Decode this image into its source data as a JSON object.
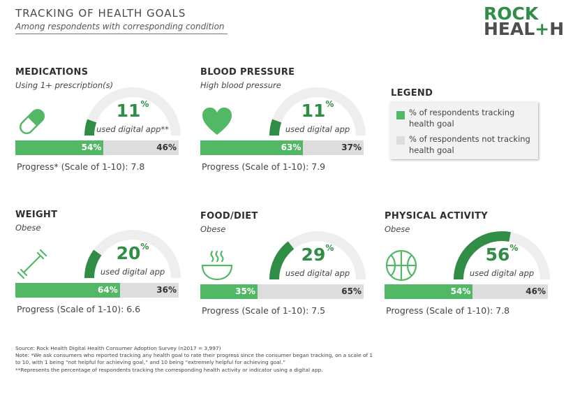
{
  "header": {
    "title": "TRACKING OF HEALTH GOALS",
    "subtitle": "Among respondents with corresponding condition",
    "logo_line1": "ROCK",
    "logo_line2_a": "HEAL",
    "logo_line2_plus": "+",
    "logo_line2_b": "H"
  },
  "legend": {
    "title": "LEGEND",
    "tracking_label": "% of respondents tracking health goal",
    "not_tracking_label": "% of respondents not tracking health goal",
    "tracking_color": "#52b865",
    "not_tracking_color": "#dddddd"
  },
  "chart_data": {
    "type": "gauge+stacked-bar",
    "panels": [
      {
        "id": "medications",
        "icon": "pill-icon",
        "title": "MEDICATIONS",
        "condition": "Using 1+ prescription(s)",
        "digital_app_pct": 11,
        "pct_label": "11",
        "pct_sign": "%",
        "app_label": "used digital app**",
        "tracking_pct": 54,
        "not_tracking_pct": 46,
        "tracking_label": "54%",
        "not_tracking_label": "46%",
        "progress_label": "Progress* (Scale of 1-10): 7.8",
        "progress": 7.8
      },
      {
        "id": "blood-pressure",
        "icon": "heart-icon",
        "title": "BLOOD PRESSURE",
        "condition": "High blood pressure",
        "digital_app_pct": 11,
        "pct_label": "11",
        "pct_sign": "%",
        "app_label": "used digital app",
        "tracking_pct": 63,
        "not_tracking_pct": 37,
        "tracking_label": "63%",
        "not_tracking_label": "37%",
        "progress_label": "Progress (Scale of 1-10): 7.9",
        "progress": 7.9
      },
      {
        "id": "weight",
        "icon": "dumbbell-icon",
        "title": "WEIGHT",
        "condition": "Obese",
        "digital_app_pct": 20,
        "pct_label": "20",
        "pct_sign": "%",
        "app_label": "used digital app",
        "tracking_pct": 64,
        "not_tracking_pct": 36,
        "tracking_label": "64%",
        "not_tracking_label": "36%",
        "progress_label": "Progress (Scale of 1-10): 6.6",
        "progress": 6.6
      },
      {
        "id": "food-diet",
        "icon": "soup-bowl-icon",
        "title": "FOOD/DIET",
        "condition": "Obese",
        "digital_app_pct": 29,
        "pct_label": "29",
        "pct_sign": "%",
        "app_label": "used digital app",
        "tracking_pct": 35,
        "not_tracking_pct": 65,
        "tracking_label": "35%",
        "not_tracking_label": "65%",
        "progress_label": "Progress (Scale of 1-10): 7.5",
        "progress": 7.5
      },
      {
        "id": "physical-activity",
        "icon": "basketball-icon",
        "title": "PHYSICAL ACTIVITY",
        "condition": "Obese",
        "digital_app_pct": 56,
        "pct_label": "56",
        "pct_sign": "%",
        "app_label": "used digital app",
        "tracking_pct": 54,
        "not_tracking_pct": 46,
        "tracking_label": "54%",
        "not_tracking_label": "46%",
        "progress_label": "Progress (Scale of 1-10): 7.8",
        "progress": 7.8
      }
    ],
    "colors": {
      "gauge_fill": "#2f8d46",
      "gauge_track": "#eeeeee",
      "bar_fill": "#52b865",
      "bar_rest": "#dddddd"
    }
  },
  "footnotes": {
    "source": "Source: Rock Health Digital Health Consumer Adoption Survey (n2017 = 3,997)",
    "note": "Note: *We ask consumers who reported tracking any health goal to rate their progress since the consumer began tracking, on a scale of 1 to 10, with 1 being “not helpful for achieving goal,” and 10 being “extremely helpful for achieving goal.”",
    "note2": "**Represents the percentage of respondents tracking the corresponding health activity or indicator using a digital app."
  }
}
